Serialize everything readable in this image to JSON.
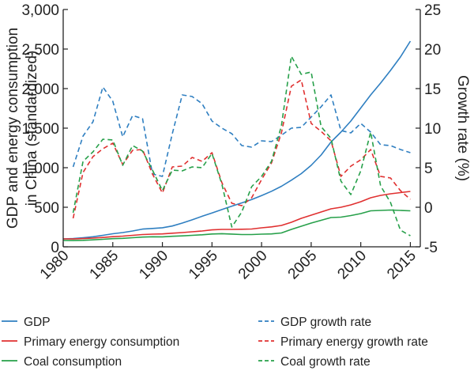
{
  "chart_data": {
    "type": "line",
    "title": "",
    "xlabel": "",
    "ylabel": "GDP and energy consumption in China (standardized)",
    "ylabel_lines": [
      "GDP and energy consumption",
      "in China (standardized)"
    ],
    "y2label": "Growth rate (%)",
    "xlim": [
      1980,
      2016
    ],
    "ylim": [
      0,
      3000
    ],
    "y2lim": [
      -5,
      25
    ],
    "x_ticks": [
      1980,
      1985,
      1990,
      1995,
      2000,
      2005,
      2010,
      2015
    ],
    "x_tick_labels": [
      "1980",
      "1985",
      "1990",
      "1995",
      "2000",
      "2005",
      "2010",
      "2015"
    ],
    "y_ticks": [
      0,
      500,
      1000,
      1500,
      2000,
      2500,
      3000
    ],
    "y_tick_labels": [
      "0",
      "500",
      "1,000",
      "1,500",
      "2,000",
      "2,500",
      "3,000"
    ],
    "y2_ticks": [
      -5,
      0,
      5,
      10,
      15,
      20,
      25
    ],
    "y2_tick_labels": [
      "-5",
      "0",
      "5",
      "10",
      "15",
      "20",
      "25"
    ],
    "grid": false,
    "legend_position": "bottom",
    "series": [
      {
        "name": "GDP",
        "axis": "left",
        "style": "solid",
        "color": "#2f7fc1",
        "x": [
          1980,
          1981,
          1982,
          1983,
          1984,
          1985,
          1986,
          1987,
          1988,
          1989,
          1990,
          1991,
          1992,
          1993,
          1994,
          1995,
          1996,
          1997,
          1998,
          1999,
          2000,
          2001,
          2002,
          2003,
          2004,
          2005,
          2006,
          2007,
          2008,
          2009,
          2010,
          2011,
          2012,
          2013,
          2014,
          2015
        ],
        "values": [
          100,
          105,
          115,
          127,
          145,
          165,
          180,
          200,
          224,
          232,
          241,
          263,
          300,
          341,
          386,
          428,
          471,
          514,
          555,
          597,
          648,
          702,
          765,
          842,
          925,
          1030,
          1160,
          1325,
          1450,
          1590,
          1755,
          1920,
          2070,
          2230,
          2400,
          2600
        ]
      },
      {
        "name": "Primary energy consumption",
        "axis": "left",
        "style": "solid",
        "color": "#e03030",
        "x": [
          1980,
          1981,
          1982,
          1983,
          1984,
          1985,
          1986,
          1987,
          1988,
          1989,
          1990,
          1991,
          1992,
          1993,
          1994,
          1995,
          1996,
          1997,
          1998,
          1999,
          2000,
          2001,
          2002,
          2003,
          2004,
          2005,
          2006,
          2007,
          2008,
          2009,
          2010,
          2011,
          2012,
          2013,
          2014,
          2015
        ],
        "values": [
          100,
          99,
          104,
          110,
          118,
          128,
          135,
          145,
          155,
          160,
          163,
          172,
          180,
          190,
          200,
          214,
          220,
          220,
          222,
          225,
          240,
          252,
          270,
          310,
          360,
          400,
          440,
          480,
          500,
          530,
          570,
          620,
          650,
          670,
          685,
          700
        ]
      },
      {
        "name": "Coal consumption",
        "axis": "left",
        "style": "solid",
        "color": "#27a04a",
        "x": [
          1980,
          1981,
          1982,
          1983,
          1984,
          1985,
          1986,
          1987,
          1988,
          1989,
          1990,
          1991,
          1992,
          1993,
          1994,
          1995,
          1996,
          1997,
          1998,
          1999,
          2000,
          2001,
          2002,
          2003,
          2004,
          2005,
          2006,
          2007,
          2008,
          2009,
          2010,
          2011,
          2012,
          2013,
          2014,
          2015
        ],
        "values": [
          80,
          79,
          82,
          88,
          95,
          103,
          107,
          115,
          123,
          127,
          126,
          133,
          138,
          145,
          152,
          162,
          166,
          161,
          155,
          155,
          160,
          163,
          175,
          220,
          260,
          300,
          335,
          370,
          375,
          395,
          420,
          455,
          460,
          465,
          460,
          455
        ]
      },
      {
        "name": "GDP growth rate",
        "axis": "right",
        "style": "dashed",
        "color": "#2f7fc1",
        "x": [
          1981,
          1982,
          1983,
          1984,
          1985,
          1986,
          1987,
          1988,
          1989,
          1990,
          1991,
          1992,
          1993,
          1994,
          1995,
          1996,
          1997,
          1998,
          1999,
          2000,
          2001,
          2002,
          2003,
          2004,
          2005,
          2006,
          2007,
          2008,
          2009,
          2010,
          2011,
          2012,
          2013,
          2014,
          2015
        ],
        "values": [
          5.1,
          9.0,
          10.8,
          15.2,
          13.4,
          8.9,
          11.6,
          11.2,
          4.2,
          3.9,
          9.3,
          14.2,
          14.0,
          13.1,
          10.9,
          10.0,
          9.3,
          7.8,
          7.6,
          8.4,
          8.3,
          9.1,
          10.0,
          10.1,
          11.4,
          12.7,
          14.2,
          9.7,
          9.4,
          10.6,
          9.5,
          7.9,
          7.8,
          7.3,
          6.9
        ]
      },
      {
        "name": "Primary energy growth rate",
        "axis": "right",
        "style": "dashed",
        "color": "#e03030",
        "x": [
          1981,
          1982,
          1983,
          1984,
          1985,
          1986,
          1987,
          1988,
          1989,
          1990,
          1991,
          1992,
          1993,
          1994,
          1995,
          1996,
          1997,
          1998,
          1999,
          2000,
          2001,
          2002,
          2003,
          2004,
          2005,
          2006,
          2007,
          2008,
          2009,
          2010,
          2011,
          2012,
          2013,
          2014,
          2015
        ],
        "values": [
          -1.4,
          4.4,
          6.4,
          7.4,
          8.1,
          5.4,
          7.2,
          7.3,
          4.2,
          1.8,
          5.1,
          5.2,
          6.3,
          5.8,
          6.9,
          3.1,
          0.5,
          0.2,
          1.2,
          3.5,
          5.6,
          9.4,
          15.3,
          16.1,
          10.6,
          9.6,
          8.4,
          3.9,
          5.2,
          6.0,
          7.3,
          3.9,
          3.7,
          2.1,
          1.0
        ]
      },
      {
        "name": "Coal growth rate",
        "axis": "right",
        "style": "dashed",
        "color": "#27a04a",
        "x": [
          1981,
          1982,
          1983,
          1984,
          1985,
          1986,
          1987,
          1988,
          1989,
          1990,
          1991,
          1992,
          1993,
          1994,
          1995,
          1996,
          1997,
          1998,
          1999,
          2000,
          2001,
          2002,
          2003,
          2004,
          2005,
          2006,
          2007,
          2008,
          2009,
          2010,
          2011,
          2012,
          2013,
          2014,
          2015
        ],
        "values": [
          -0.7,
          5.8,
          7.0,
          8.6,
          8.5,
          5.3,
          7.8,
          7.1,
          4.7,
          2.1,
          4.7,
          4.6,
          5.1,
          5.0,
          6.8,
          2.9,
          -2.5,
          -0.6,
          2.6,
          3.9,
          5.8,
          10.3,
          19.1,
          16.8,
          17.1,
          10.2,
          8.7,
          3.3,
          1.6,
          4.6,
          9.5,
          2.7,
          0.6,
          -2.9,
          -3.6
        ]
      }
    ]
  }
}
